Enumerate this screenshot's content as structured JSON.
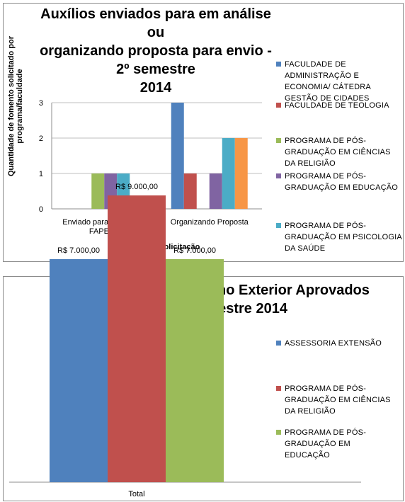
{
  "chart_data": [
    {
      "type": "bar",
      "title": "Auxílios enviados para em análise ou organizando  proposta para envio - 2º semestre 2014",
      "title_lines": [
        "Auxílios enviados para em análise ou",
        "organizando  proposta para envio - 2º semestre",
        "2014"
      ],
      "xlabel": "Situação da solicitação",
      "ylabel_lines": [
        "Quantidade de fomento solicitado  por",
        "programa/faculdade"
      ],
      "categories": [
        "Enviado para análise da FAPESP",
        "Organizando Proposta"
      ],
      "category_label_lines": [
        [
          "Enviado para análise da",
          "FAPESP"
        ],
        [
          "Organizando Proposta"
        ]
      ],
      "ylim": [
        0,
        3
      ],
      "yticks": [
        "0",
        "1",
        "2",
        "3"
      ],
      "grid": true,
      "legend_position": "right",
      "series": [
        {
          "name": "FACULDADE DE ADMINISTRAÇÃO E ECONOMIA/ CÁTEDRA GESTÃO DE CIDADES",
          "name_lines": [
            "FACULDADE DE",
            "ADMINISTRAÇÃO E",
            "ECONOMIA/ CÁTEDRA",
            "GESTÃO DE CIDADES"
          ],
          "color": "#4f81bd",
          "values": [
            0,
            3
          ]
        },
        {
          "name": "FACULDADE DE TEOLOGIA",
          "name_lines": [
            "FACULDADE DE TEOLOGIA"
          ],
          "color": "#c0504d",
          "values": [
            0,
            1
          ]
        },
        {
          "name": "PROGRAMA DE PÓS-GRADUAÇÃO EM CIÊNCIAS DA RELIGIÃO",
          "name_lines": [
            "PROGRAMA DE PÓS-",
            "GRADUAÇÃO EM CIÊNCIAS",
            "DA RELIGIÃO"
          ],
          "color": "#9bbb59",
          "values": [
            1,
            0
          ]
        },
        {
          "name": "PROGRAMA DE PÓS-GRADUAÇÃO EM EDUCAÇÃO",
          "name_lines": [
            "PROGRAMA DE PÓS-",
            "GRADUAÇÃO EM EDUCAÇÃO"
          ],
          "color": "#8064a2",
          "values": [
            1,
            1
          ]
        },
        {
          "name": "PROGRAMA DE PÓS-GRADUAÇÃO EM PSICOLOGIA DA SAÚDE",
          "name_lines": [
            "PROGRAMA DE PÓS-",
            "GRADUAÇÃO EM PSICOLOGIA",
            "DA SAÚDE"
          ],
          "color": "#4bacc6",
          "values": [
            1,
            2
          ]
        },
        {
          "name": "",
          "name_lines": [],
          "color": "#f79646",
          "values": [
            0,
            2
          ]
        }
      ]
    },
    {
      "type": "bar",
      "title": "Auxílios Reuniões no Exterior Aprovados 2º semestre 2014",
      "title_lines": [
        "Auxílios Reuniões no Exterior Aprovados",
        "2º semestre 2014"
      ],
      "categories": [
        "Total"
      ],
      "ylim": [
        0,
        10000
      ],
      "grid": false,
      "legend_position": "right",
      "series": [
        {
          "name": "ASSESSORIA EXTENSÃO",
          "name_lines": [
            "ASSESSORIA EXTENSÃO"
          ],
          "color": "#4f81bd",
          "values": [
            7000
          ],
          "labels": [
            "R$ 7.000,00"
          ]
        },
        {
          "name": "PROGRAMA DE PÓS-GRADUAÇÃO EM CIÊNCIAS DA RELIGIÃO",
          "name_lines": [
            "PROGRAMA DE PÓS-",
            "GRADUAÇÃO EM CIÊNCIAS",
            "DA RELIGIÃO"
          ],
          "color": "#c0504d",
          "values": [
            9000
          ],
          "labels": [
            "R$ 9.000,00"
          ]
        },
        {
          "name": "PROGRAMA DE PÓS-GRADUAÇÃO EM EDUCAÇÃO",
          "name_lines": [
            "PROGRAMA DE PÓS-",
            "GRADUAÇÃO EM",
            "EDUCAÇÃO"
          ],
          "color": "#9bbb59",
          "values": [
            7000
          ],
          "labels": [
            "R$ 7.000,00"
          ]
        }
      ]
    }
  ]
}
